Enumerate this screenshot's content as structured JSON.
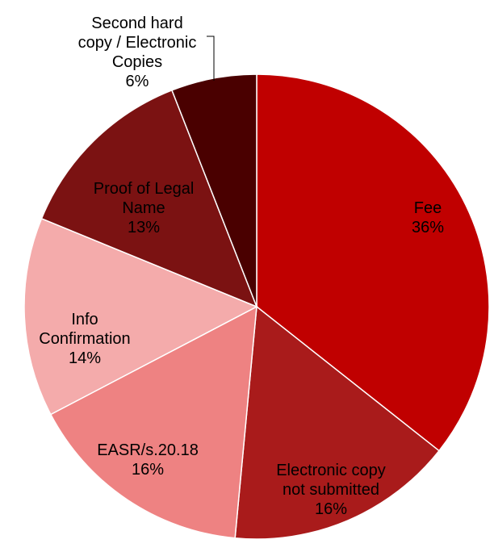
{
  "chart_data": {
    "type": "pie",
    "categories": [
      "Fee",
      "Electronic copy not submitted",
      "EASR/s.20.18",
      "Info Confirmation",
      "Proof of Legal Name",
      "Second hard copy / Electronic Copies"
    ],
    "values": [
      36,
      16,
      16,
      14,
      13,
      6
    ],
    "value_labels": [
      "36%",
      "16%",
      "16%",
      "14%",
      "13%",
      "6%"
    ],
    "colors": [
      "#c00000",
      "#a91b1b",
      "#ee8282",
      "#f4abab",
      "#7b1212",
      "#4a0000"
    ]
  }
}
